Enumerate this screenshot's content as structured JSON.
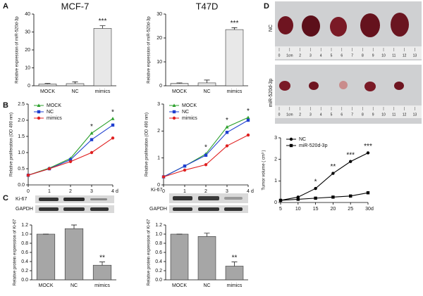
{
  "figure": {
    "panels": [
      "A",
      "B",
      "C",
      "D"
    ],
    "blot_labels": [
      "Ki-67",
      "GAPDH"
    ],
    "tumor_labels": [
      "NC",
      "miR-520d-3p"
    ],
    "ruler_labels": [
      "0",
      "1cm",
      "2",
      "3",
      "4",
      "5",
      "6",
      "7",
      "8",
      "9",
      "10",
      "11",
      "12",
      "13"
    ]
  },
  "chart_data": [
    {
      "type": "bar",
      "title": "MCF-7",
      "ylabel": "Relative expression of miR-520d-3p",
      "categories": [
        "MOCK",
        "NC",
        "mimics"
      ],
      "values": [
        1,
        1.2,
        32
      ],
      "errors": [
        0.3,
        1,
        1.5
      ],
      "color": "#e8e8e8",
      "ylim": [
        0,
        40
      ],
      "yticks": [
        0,
        10,
        20,
        30,
        40
      ],
      "annotations": [
        {
          "text": "***",
          "category": 2
        }
      ]
    },
    {
      "type": "bar",
      "title": "T47D",
      "ylabel": "Relative expression of miR-520d-3p",
      "categories": [
        "MOCK",
        "NC",
        "mimics"
      ],
      "values": [
        1,
        1.2,
        23.5
      ],
      "errors": [
        0.2,
        1.2,
        0.8
      ],
      "color": "#e8e8e8",
      "ylim": [
        0,
        30
      ],
      "yticks": [
        0,
        10,
        20,
        30
      ],
      "annotations": [
        {
          "text": "***",
          "category": 2
        }
      ]
    },
    {
      "type": "line",
      "ylabel": "Relative proliferation (OD 490 nm)",
      "x_unit": "d",
      "x": [
        0,
        1,
        2,
        3,
        4
      ],
      "xlim": [
        0,
        4
      ],
      "xticks": [
        0,
        1,
        2,
        3,
        4
      ],
      "ylim": [
        0,
        2.5
      ],
      "yticks": [
        {
          "value": 0,
          "label": "0.0"
        },
        0.5,
        {
          "value": 1,
          "label": "1.0"
        },
        1.5,
        {
          "value": 2,
          "label": "2.0"
        },
        2.5
      ],
      "series": [
        {
          "name": "MOCK",
          "color": "#2ca02c",
          "marker": "triangle",
          "values": [
            0.3,
            0.52,
            0.82,
            1.6,
            2.05
          ]
        },
        {
          "name": "NC",
          "color": "#1f3fd0",
          "marker": "square",
          "values": [
            0.3,
            0.5,
            0.78,
            1.4,
            1.85
          ]
        },
        {
          "name": "mimics",
          "color": "#e02020",
          "marker": "circle",
          "values": [
            0.3,
            0.5,
            0.72,
            1.0,
            1.45
          ]
        }
      ],
      "annotations": [
        {
          "text": "*",
          "x": 3
        },
        {
          "text": "*",
          "x": 4
        }
      ]
    },
    {
      "type": "line",
      "ylabel": "Relative proliferation (OD 490 nm)",
      "x_unit": "d",
      "x": [
        0,
        1,
        2,
        3,
        4
      ],
      "xlim": [
        0,
        4
      ],
      "xticks": [
        0,
        1,
        2,
        3,
        4
      ],
      "ylim": [
        0,
        3
      ],
      "yticks": [
        0,
        1,
        2,
        3
      ],
      "series": [
        {
          "name": "MOCK",
          "color": "#2ca02c",
          "marker": "triangle",
          "values": [
            0.3,
            0.7,
            1.15,
            2.15,
            2.5
          ]
        },
        {
          "name": "NC",
          "color": "#1f3fd0",
          "marker": "square",
          "values": [
            0.3,
            0.7,
            1.1,
            1.95,
            2.4
          ]
        },
        {
          "name": "mimics",
          "color": "#e02020",
          "marker": "circle",
          "values": [
            0.3,
            0.55,
            0.75,
            1.45,
            1.85
          ]
        }
      ],
      "annotations": [
        {
          "text": "*",
          "x": 2
        },
        {
          "text": "*",
          "x": 3
        },
        {
          "text": "*",
          "x": 4
        }
      ]
    },
    {
      "type": "bar",
      "ylabel": "Relative protein expression of Ki-67",
      "categories": [
        "MOCK",
        "NC",
        "mimics"
      ],
      "values": [
        1.0,
        1.12,
        0.32
      ],
      "errors": [
        0,
        0.08,
        0.07
      ],
      "color": "#a6a6a6",
      "ylim": [
        0,
        1.2
      ],
      "yticks": [
        {
          "value": 0,
          "label": "0.0"
        },
        0.2,
        0.4,
        0.6,
        0.8,
        {
          "value": 1,
          "label": "1.0"
        },
        1.2
      ],
      "annotations": [
        {
          "text": "**",
          "category": 2
        }
      ]
    },
    {
      "type": "bar",
      "ylabel": "Relative protein expression of Ki-67",
      "categories": [
        "MOCK",
        "NC",
        "mimics"
      ],
      "values": [
        1.0,
        0.95,
        0.3
      ],
      "errors": [
        0,
        0.07,
        0.09
      ],
      "color": "#a6a6a6",
      "ylim": [
        0,
        1.2
      ],
      "yticks": [
        {
          "value": 0,
          "label": "0.0"
        },
        0.2,
        0.4,
        0.6,
        0.8,
        {
          "value": 1,
          "label": "1.0"
        },
        1.2
      ],
      "annotations": [
        {
          "text": "**",
          "category": 2
        }
      ]
    },
    {
      "type": "line",
      "ylabel": "Tumor volume ( cm³ )",
      "x_unit": "d",
      "x": [
        5,
        10,
        15,
        20,
        25,
        30
      ],
      "xlim": [
        5,
        30
      ],
      "xticks": [
        5,
        10,
        15,
        20,
        25,
        30
      ],
      "ylim": [
        0,
        3
      ],
      "yticks": [
        0,
        1,
        2,
        3
      ],
      "series": [
        {
          "name": "NC",
          "color": "#000000",
          "marker": "circle",
          "values": [
            0.1,
            0.25,
            0.65,
            1.35,
            1.9,
            2.3
          ]
        },
        {
          "name": "miR-520d-3p",
          "color": "#000000",
          "marker": "square",
          "values": [
            0.1,
            0.15,
            0.2,
            0.25,
            0.3,
            0.45
          ]
        }
      ],
      "annotations": [
        {
          "text": "*",
          "x": 15
        },
        {
          "text": "**",
          "x": 20
        },
        {
          "text": "***",
          "x": 25
        },
        {
          "text": "***",
          "x": 30
        }
      ]
    }
  ]
}
